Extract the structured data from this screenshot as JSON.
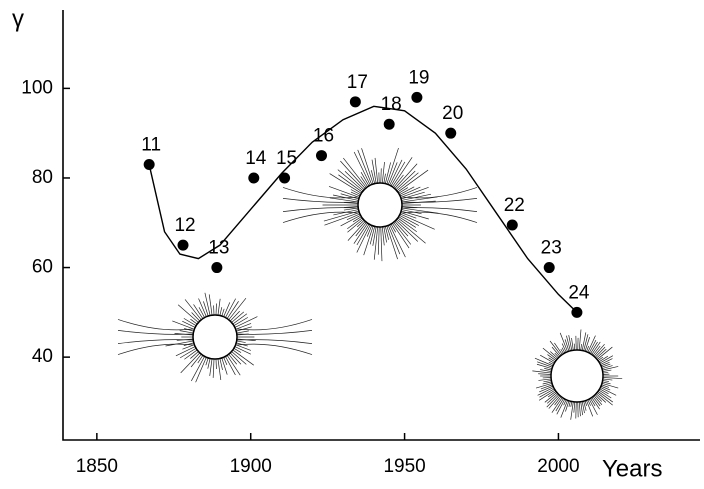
{
  "chart_data": {
    "type": "scatter",
    "y_label": "γ",
    "x_label": "Years",
    "xlim": [
      1839,
      2046
    ],
    "xticks": [
      1850,
      1900,
      1950,
      2000
    ],
    "ylim": [
      21.5,
      117.5
    ],
    "yticks": [
      40,
      60,
      80,
      100
    ],
    "series": [
      {
        "color": "#000000",
        "x": [
          1867,
          1878,
          1889,
          1901,
          1911,
          1923,
          1934,
          1945,
          1954,
          1965,
          1985,
          1997,
          2006
        ],
        "values": [
          83,
          65,
          60,
          80,
          80,
          85,
          97,
          92,
          98,
          90,
          69.5,
          60,
          50
        ],
        "labels": [
          "11",
          "12",
          "13",
          "14",
          "15",
          "16",
          "17",
          "18",
          "19",
          "20",
          "22",
          "23",
          "24"
        ]
      },
      {
        "color": "#000000",
        "style": "line",
        "x": [
          1867,
          1872,
          1877,
          1883,
          1890,
          1900,
          1910,
          1920,
          1930,
          1940,
          1950,
          1960,
          1970,
          1980,
          1990,
          2000,
          2006
        ],
        "values": [
          83,
          68,
          63,
          62,
          65,
          73,
          81,
          88,
          93,
          96,
          95,
          90,
          82,
          72,
          62,
          54,
          50
        ]
      }
    ]
  }
}
